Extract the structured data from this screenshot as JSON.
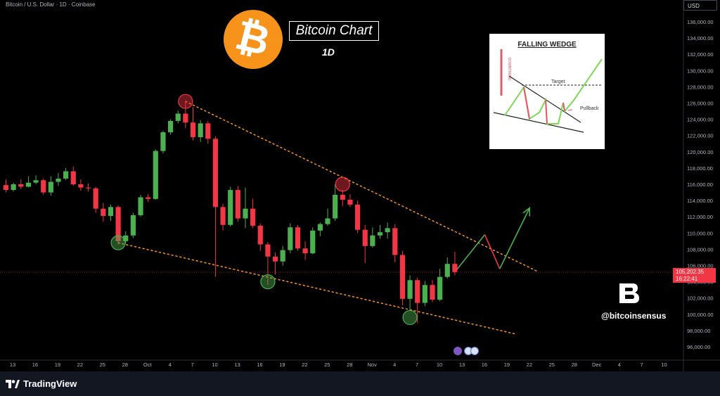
{
  "chart_data": {
    "type": "candlestick",
    "symbol": "Bitcoin / U.S. Dollar · 1D · Coinbase",
    "currency": "USD",
    "period": "1D",
    "title": "Bitcoin Chart",
    "price_axis": {
      "ylim": [
        95000,
        137000
      ],
      "tick_step": 2000,
      "tick_labels": [
        "96,000.00",
        "98,000.00",
        "100,000.00",
        "102,000.00",
        "104,000.00",
        "106,000.00",
        "108,000.00",
        "110,000.00",
        "112,000.00",
        "114,000.00",
        "116,000.00",
        "118,000.00",
        "120,000.00",
        "122,000.00",
        "124,000.00",
        "126,000.00",
        "128,000.00",
        "130,000.00",
        "132,000.00",
        "134,000.00",
        "136,000.00"
      ]
    },
    "time_axis_labels": [
      "13",
      "16",
      "19",
      "22",
      "25",
      "28",
      "Oct",
      "4",
      "7",
      "10",
      "13",
      "16",
      "19",
      "22",
      "25",
      "28",
      "Nov",
      "4",
      "7",
      "10",
      "13",
      "16",
      "19",
      "22",
      "25",
      "28",
      "Dec",
      "4",
      "7",
      "10"
    ],
    "last_price": "105,202.35",
    "countdown": "16:22:41",
    "candles": [
      {
        "o": 115900,
        "h": 116600,
        "l": 115000,
        "c": 115300
      },
      {
        "o": 115300,
        "h": 116200,
        "l": 115100,
        "c": 116000
      },
      {
        "o": 116000,
        "h": 116600,
        "l": 115400,
        "c": 115700
      },
      {
        "o": 115700,
        "h": 117000,
        "l": 115600,
        "c": 116200
      },
      {
        "o": 116200,
        "h": 117100,
        "l": 116000,
        "c": 116500
      },
      {
        "o": 116500,
        "h": 116700,
        "l": 114700,
        "c": 115000
      },
      {
        "o": 115000,
        "h": 117000,
        "l": 114600,
        "c": 116300
      },
      {
        "o": 116300,
        "h": 117400,
        "l": 115800,
        "c": 116700
      },
      {
        "o": 116700,
        "h": 118000,
        "l": 116500,
        "c": 117600
      },
      {
        "o": 117600,
        "h": 118200,
        "l": 115800,
        "c": 116000
      },
      {
        "o": 116000,
        "h": 116600,
        "l": 115200,
        "c": 115600
      },
      {
        "o": 115600,
        "h": 116100,
        "l": 115100,
        "c": 115500
      },
      {
        "o": 115500,
        "h": 115700,
        "l": 112500,
        "c": 113000
      },
      {
        "o": 113000,
        "h": 113700,
        "l": 111400,
        "c": 112100
      },
      {
        "o": 112100,
        "h": 113500,
        "l": 111500,
        "c": 113200
      },
      {
        "o": 113200,
        "h": 113400,
        "l": 108600,
        "c": 109000
      },
      {
        "o": 109000,
        "h": 110200,
        "l": 108700,
        "c": 109700
      },
      {
        "o": 109700,
        "h": 112500,
        "l": 109400,
        "c": 112200
      },
      {
        "o": 112200,
        "h": 114700,
        "l": 112000,
        "c": 114400
      },
      {
        "o": 114400,
        "h": 114800,
        "l": 113800,
        "c": 114200
      },
      {
        "o": 114200,
        "h": 120300,
        "l": 114100,
        "c": 120100
      },
      {
        "o": 120100,
        "h": 122600,
        "l": 119800,
        "c": 122400
      },
      {
        "o": 122400,
        "h": 124000,
        "l": 122100,
        "c": 123800
      },
      {
        "o": 123800,
        "h": 125100,
        "l": 123500,
        "c": 124700
      },
      {
        "o": 124700,
        "h": 126200,
        "l": 122900,
        "c": 123600
      },
      {
        "o": 123600,
        "h": 125500,
        "l": 121400,
        "c": 121800
      },
      {
        "o": 121800,
        "h": 123900,
        "l": 121200,
        "c": 123500
      },
      {
        "o": 123500,
        "h": 123800,
        "l": 121000,
        "c": 121600
      },
      {
        "o": 121600,
        "h": 121900,
        "l": 104600,
        "c": 113200
      },
      {
        "o": 113200,
        "h": 113600,
        "l": 110300,
        "c": 111000
      },
      {
        "o": 111000,
        "h": 115700,
        "l": 110800,
        "c": 115300
      },
      {
        "o": 115300,
        "h": 115800,
        "l": 111400,
        "c": 111800
      },
      {
        "o": 111800,
        "h": 115600,
        "l": 110600,
        "c": 113000
      },
      {
        "o": 113000,
        "h": 114200,
        "l": 110600,
        "c": 110900
      },
      {
        "o": 110900,
        "h": 111200,
        "l": 107800,
        "c": 108600
      },
      {
        "o": 108600,
        "h": 108900,
        "l": 103600,
        "c": 107100
      },
      {
        "o": 107100,
        "h": 107600,
        "l": 104900,
        "c": 106500
      },
      {
        "o": 106500,
        "h": 108400,
        "l": 106000,
        "c": 107900
      },
      {
        "o": 107900,
        "h": 111200,
        "l": 107500,
        "c": 110700
      },
      {
        "o": 110700,
        "h": 111000,
        "l": 107800,
        "c": 108100
      },
      {
        "o": 108100,
        "h": 109000,
        "l": 106700,
        "c": 107500
      },
      {
        "o": 107500,
        "h": 110700,
        "l": 107400,
        "c": 110300
      },
      {
        "o": 110300,
        "h": 111300,
        "l": 109600,
        "c": 111100
      },
      {
        "o": 111100,
        "h": 113000,
        "l": 110900,
        "c": 111800
      },
      {
        "o": 111800,
        "h": 116000,
        "l": 111500,
        "c": 114700
      },
      {
        "o": 114700,
        "h": 115300,
        "l": 113300,
        "c": 114100
      },
      {
        "o": 114100,
        "h": 114800,
        "l": 113200,
        "c": 113500
      },
      {
        "o": 113500,
        "h": 114000,
        "l": 110000,
        "c": 110400
      },
      {
        "o": 110400,
        "h": 111000,
        "l": 106300,
        "c": 108400
      },
      {
        "o": 108400,
        "h": 110700,
        "l": 108200,
        "c": 109700
      },
      {
        "o": 109700,
        "h": 111000,
        "l": 109300,
        "c": 110100
      },
      {
        "o": 110100,
        "h": 111300,
        "l": 109300,
        "c": 110600
      },
      {
        "o": 110600,
        "h": 111100,
        "l": 106400,
        "c": 107300
      },
      {
        "o": 107300,
        "h": 107800,
        "l": 101100,
        "c": 101900
      },
      {
        "o": 101900,
        "h": 104800,
        "l": 100500,
        "c": 104200
      },
      {
        "o": 104200,
        "h": 104500,
        "l": 98900,
        "c": 101400
      },
      {
        "o": 101400,
        "h": 104100,
        "l": 101000,
        "c": 103600
      },
      {
        "o": 103600,
        "h": 104200,
        "l": 101500,
        "c": 101800
      },
      {
        "o": 101800,
        "h": 105600,
        "l": 101600,
        "c": 104600
      },
      {
        "o": 104600,
        "h": 107000,
        "l": 104400,
        "c": 106200
      },
      {
        "o": 106200,
        "h": 107700,
        "l": 104800,
        "c": 105200
      }
    ],
    "annotations": {
      "resistance_line": {
        "from": {
          "i": 24,
          "price": 126200
        },
        "to": {
          "i": 71,
          "price": 105300
        }
      },
      "support_line": {
        "from": {
          "i": 15,
          "price": 108800
        },
        "to": {
          "i": 68,
          "price": 97600
        }
      },
      "projection_path": [
        {
          "i": 60,
          "price": 105200
        },
        {
          "i": 64,
          "price": 109800
        },
        {
          "i": 66,
          "price": 105600
        },
        {
          "i": 70,
          "price": 113100
        }
      ],
      "highlight_circles": [
        {
          "i": 24,
          "price": 126200,
          "color": "#f23645"
        },
        {
          "i": 45,
          "price": 116000,
          "color": "#f23645"
        },
        {
          "i": 15,
          "price": 108800,
          "color": "#4caf50"
        },
        {
          "i": 35,
          "price": 104000,
          "color": "#4caf50"
        },
        {
          "i": 54,
          "price": 99600,
          "color": "#4caf50"
        }
      ]
    }
  },
  "colors": {
    "up": "#4caf50",
    "down": "#f23645",
    "trendline": "#f7931a",
    "projection_up": "#4caf50",
    "projection_down": "#f23645"
  },
  "overlay": {
    "title": "Bitcoin Chart",
    "period": "1D",
    "btc_icon": "₿",
    "handle": "@bitcoinsensus"
  },
  "inset": {
    "title": "FALLING WEDGE",
    "target_label": "Target",
    "pullback_label": "Pullback",
    "side_label": "DOWNTREND"
  },
  "footer": {
    "brand": "TradingView"
  }
}
